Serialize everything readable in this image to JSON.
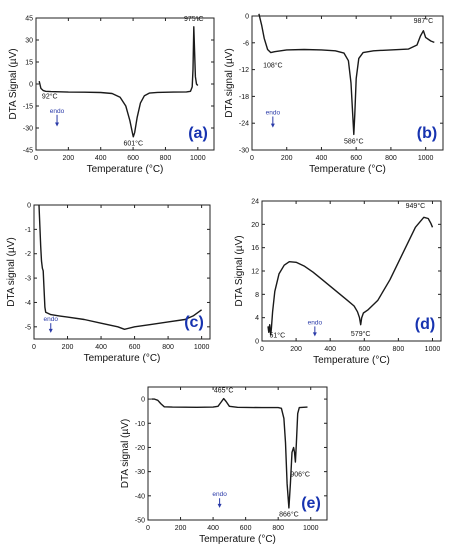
{
  "figure": {
    "background": "#ffffff",
    "line_color": "#1a1a1a",
    "endo_color": "#2a3aa8",
    "panel_label_color": "#1733b0"
  },
  "chart_data": [
    {
      "id": "a",
      "type": "line",
      "panel_label": "(a)",
      "xlabel": "Temperature (°C)",
      "ylabel": "DTA Signal (µV)",
      "xlim": [
        0,
        1100
      ],
      "ylim": [
        -45,
        45
      ],
      "xticks": [
        0,
        200,
        400,
        600,
        800,
        1000
      ],
      "yticks": [
        -45,
        -30,
        -15,
        0,
        15,
        30,
        45
      ],
      "grid": false,
      "endo_label": "endo",
      "endo_arrow": {
        "x": 130,
        "y_from": -21,
        "y_to": -29
      },
      "annotations": [
        {
          "text": "92°C",
          "x": 85,
          "y": -10
        },
        {
          "text": "601°C",
          "x": 601,
          "y": -42
        },
        {
          "text": "975°C",
          "x": 975,
          "y": 43
        }
      ],
      "series": [
        {
          "values": [
            [
              20,
              2
            ],
            [
              30,
              -3
            ],
            [
              45,
              -4.5
            ],
            [
              60,
              -5
            ],
            [
              92,
              -5.2
            ],
            [
              200,
              -5.5
            ],
            [
              300,
              -5.6
            ],
            [
              400,
              -5.8
            ],
            [
              470,
              -6.5
            ],
            [
              520,
              -9
            ],
            [
              555,
              -15
            ],
            [
              580,
              -25
            ],
            [
              595,
              -33
            ],
            [
              601,
              -36
            ],
            [
              610,
              -33
            ],
            [
              625,
              -23
            ],
            [
              645,
              -13
            ],
            [
              670,
              -8
            ],
            [
              700,
              -6.2
            ],
            [
              750,
              -5.7
            ],
            [
              850,
              -5.5
            ],
            [
              930,
              -5.4
            ],
            [
              955,
              -5
            ],
            [
              965,
              -2
            ],
            [
              970,
              10
            ],
            [
              975,
              39
            ],
            [
              980,
              22
            ],
            [
              985,
              5
            ],
            [
              992,
              0
            ],
            [
              1000,
              -1
            ]
          ]
        }
      ]
    },
    {
      "id": "b",
      "type": "line",
      "panel_label": "(b)",
      "xlabel": "Temperature (°C)",
      "ylabel": "DTA signal (µV)",
      "xlim": [
        0,
        1100
      ],
      "ylim": [
        -30,
        0
      ],
      "xticks": [
        0,
        200,
        400,
        600,
        800,
        1000
      ],
      "yticks": [
        -30,
        -24,
        -18,
        -12,
        -6,
        0
      ],
      "grid": false,
      "endo_label": "endo",
      "endo_arrow": {
        "x": 120,
        "y_from": -22.5,
        "y_to": -25
      },
      "annotations": [
        {
          "text": "108°C",
          "x": 120,
          "y": -11.5
        },
        {
          "text": "586°C",
          "x": 586,
          "y": -28.6
        },
        {
          "text": "987°C",
          "x": 987,
          "y": -1.6
        }
      ],
      "series": [
        {
          "values": [
            [
              40,
              0.5
            ],
            [
              55,
              -2
            ],
            [
              70,
              -5
            ],
            [
              90,
              -7.5
            ],
            [
              108,
              -8.2
            ],
            [
              130,
              -8
            ],
            [
              200,
              -7.6
            ],
            [
              300,
              -7.5
            ],
            [
              400,
              -7.6
            ],
            [
              480,
              -7.8
            ],
            [
              530,
              -8.3
            ],
            [
              555,
              -10
            ],
            [
              570,
              -15
            ],
            [
              580,
              -22
            ],
            [
              586,
              -26.5
            ],
            [
              592,
              -22
            ],
            [
              600,
              -14
            ],
            [
              615,
              -9.5
            ],
            [
              640,
              -8.2
            ],
            [
              700,
              -7.8
            ],
            [
              800,
              -7.6
            ],
            [
              900,
              -7.4
            ],
            [
              950,
              -6.5
            ],
            [
              970,
              -4.5
            ],
            [
              987,
              -3.3
            ],
            [
              1000,
              -4.8
            ],
            [
              1030,
              -5.6
            ],
            [
              1050,
              -5.9
            ]
          ]
        }
      ]
    },
    {
      "id": "c",
      "type": "line",
      "panel_label": "(c)",
      "xlabel": "Temperature (°C)",
      "ylabel": "DTA signal (µV)",
      "xlim": [
        0,
        1050
      ],
      "ylim": [
        -5.5,
        0
      ],
      "xticks": [
        0,
        200,
        400,
        600,
        800,
        1000
      ],
      "yticks": [
        -5,
        -4,
        -3,
        -2,
        -1,
        0
      ],
      "grid": false,
      "endo_label": "endo",
      "endo_arrow": {
        "x": 100,
        "y_from": -4.85,
        "y_to": -5.25
      },
      "annotations": [],
      "series": [
        {
          "values": [
            [
              30,
              0
            ],
            [
              35,
              -0.9
            ],
            [
              40,
              -1.7
            ],
            [
              45,
              -2.3
            ],
            [
              50,
              -2.6
            ],
            [
              55,
              -2.7
            ],
            [
              60,
              -3.5
            ],
            [
              65,
              -4.2
            ],
            [
              70,
              -4.4
            ],
            [
              100,
              -4.5
            ],
            [
              150,
              -4.55
            ],
            [
              200,
              -4.6
            ],
            [
              300,
              -4.7
            ],
            [
              400,
              -4.85
            ],
            [
              500,
              -5.0
            ],
            [
              540,
              -5.1
            ],
            [
              600,
              -5.0
            ],
            [
              700,
              -4.9
            ],
            [
              800,
              -4.8
            ],
            [
              900,
              -4.7
            ],
            [
              950,
              -4.55
            ],
            [
              1000,
              -4.3
            ]
          ]
        }
      ]
    },
    {
      "id": "d",
      "type": "line",
      "panel_label": "(d)",
      "xlabel": "Temperature (°C)",
      "ylabel": "DTA Signal (µV)",
      "xlim": [
        0,
        1050
      ],
      "ylim": [
        0,
        24
      ],
      "xticks": [
        0,
        200,
        400,
        600,
        800,
        1000
      ],
      "yticks": [
        0,
        4,
        8,
        12,
        16,
        20,
        24
      ],
      "grid": false,
      "endo_label": "endo",
      "endo_arrow": {
        "x": 310,
        "y_from": 2.5,
        "y_to": 0.8
      },
      "annotations": [
        {
          "text": "51°C",
          "x": 90,
          "y": 0.6
        },
        {
          "text": "579°C",
          "x": 579,
          "y": 0.9
        },
        {
          "text": "949°C",
          "x": 900,
          "y": 22.8
        }
      ],
      "series": [
        {
          "values": [
            [
              35,
              2.5
            ],
            [
              40,
              1.5
            ],
            [
              45,
              2.8
            ],
            [
              51,
              1.0
            ],
            [
              55,
              2.2
            ],
            [
              62,
              5
            ],
            [
              75,
              8.5
            ],
            [
              100,
              11.5
            ],
            [
              130,
              13
            ],
            [
              160,
              13.6
            ],
            [
              200,
              13.5
            ],
            [
              250,
              12.8
            ],
            [
              300,
              11.8
            ],
            [
              350,
              10.6
            ],
            [
              400,
              9.4
            ],
            [
              450,
              8.2
            ],
            [
              500,
              7
            ],
            [
              540,
              6
            ],
            [
              560,
              5
            ],
            [
              572,
              4
            ],
            [
              579,
              2.8
            ],
            [
              585,
              4
            ],
            [
              595,
              4.8
            ],
            [
              620,
              5.3
            ],
            [
              680,
              7
            ],
            [
              750,
              10.5
            ],
            [
              800,
              13.5
            ],
            [
              850,
              16.5
            ],
            [
              900,
              19.5
            ],
            [
              949,
              21.2
            ],
            [
              975,
              21
            ],
            [
              990,
              20.2
            ],
            [
              1000,
              19.5
            ]
          ]
        }
      ]
    },
    {
      "id": "e",
      "type": "line",
      "panel_label": "(e)",
      "xlabel": "Temperature (°C)",
      "ylabel": "DTA signal (µV)",
      "xlim": [
        0,
        1100
      ],
      "ylim": [
        -50,
        5
      ],
      "xticks": [
        0,
        200,
        400,
        600,
        800,
        1000
      ],
      "yticks": [
        -50,
        -40,
        -30,
        -20,
        -10,
        0
      ],
      "grid": false,
      "endo_label": "endo",
      "endo_arrow": {
        "x": 440,
        "y_from": -41,
        "y_to": -45
      },
      "annotations": [
        {
          "text": "465°C",
          "x": 465,
          "y": 2.8
        },
        {
          "text": "906°C",
          "x": 935,
          "y": -32
        },
        {
          "text": "866°C",
          "x": 866,
          "y": -48.5
        }
      ],
      "series": [
        {
          "values": [
            [
              20,
              0
            ],
            [
              40,
              0
            ],
            [
              60,
              -0.5
            ],
            [
              80,
              -2
            ],
            [
              100,
              -3.2
            ],
            [
              150,
              -3.3
            ],
            [
              300,
              -3.4
            ],
            [
              400,
              -3.3
            ],
            [
              430,
              -3
            ],
            [
              450,
              -1.2
            ],
            [
              465,
              0.2
            ],
            [
              480,
              -1
            ],
            [
              500,
              -3
            ],
            [
              550,
              -3.4
            ],
            [
              700,
              -3.5
            ],
            [
              800,
              -3.5
            ],
            [
              820,
              -3.8
            ],
            [
              835,
              -8
            ],
            [
              845,
              -18
            ],
            [
              855,
              -35
            ],
            [
              866,
              -45
            ],
            [
              875,
              -35
            ],
            [
              885,
              -22
            ],
            [
              895,
              -20
            ],
            [
              900,
              -22
            ],
            [
              906,
              -26
            ],
            [
              912,
              -18
            ],
            [
              920,
              -6
            ],
            [
              930,
              -3.5
            ],
            [
              980,
              -3.3
            ]
          ]
        }
      ]
    }
  ]
}
